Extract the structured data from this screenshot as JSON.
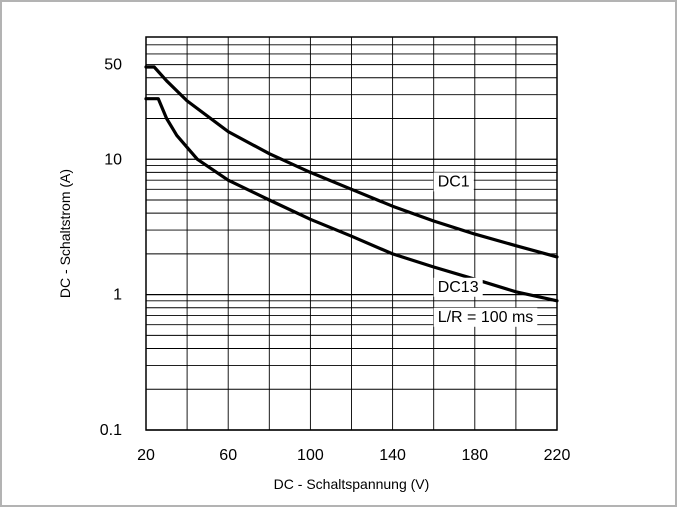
{
  "chart_data": {
    "type": "line",
    "title": "",
    "xlabel": "DC - Schaltspannung (V)",
    "ylabel": "DC - Schaltstrom (A)",
    "xlim": [
      20,
      220
    ],
    "ylim": [
      0.1,
      80
    ],
    "yscale": "log",
    "xticks": [
      20,
      60,
      100,
      140,
      180,
      220
    ],
    "xtick_labels": [
      "20",
      "60",
      "100",
      "140",
      "180",
      "220"
    ],
    "yticks": [
      0.1,
      1,
      10,
      50
    ],
    "ytick_labels": [
      "0.1",
      "1",
      "10",
      "50"
    ],
    "grid": true,
    "series": [
      {
        "name": "DC1",
        "color": "#000000",
        "x": [
          20,
          24,
          30,
          40,
          60,
          80,
          100,
          120,
          140,
          160,
          180,
          200,
          220
        ],
        "y": [
          48,
          48,
          38,
          27,
          16,
          11,
          8,
          6,
          4.5,
          3.5,
          2.8,
          2.3,
          1.9
        ]
      },
      {
        "name": "DC13",
        "color": "#000000",
        "x": [
          20,
          26,
          30,
          35,
          45,
          60,
          80,
          100,
          120,
          140,
          160,
          180,
          200,
          220
        ],
        "y": [
          28,
          28,
          20,
          15,
          10,
          7,
          5,
          3.6,
          2.7,
          2,
          1.6,
          1.3,
          1.05,
          0.9
        ]
      }
    ],
    "annotations": [
      {
        "id": "dc1",
        "text": "DC1",
        "x": 160,
        "y": 6.3
      },
      {
        "id": "dc13",
        "text": "DC13",
        "x": 160,
        "y": 1.05
      },
      {
        "id": "dc13-lr",
        "text": "L/R = 100 ms",
        "x": 160,
        "y": 0.63
      }
    ]
  }
}
